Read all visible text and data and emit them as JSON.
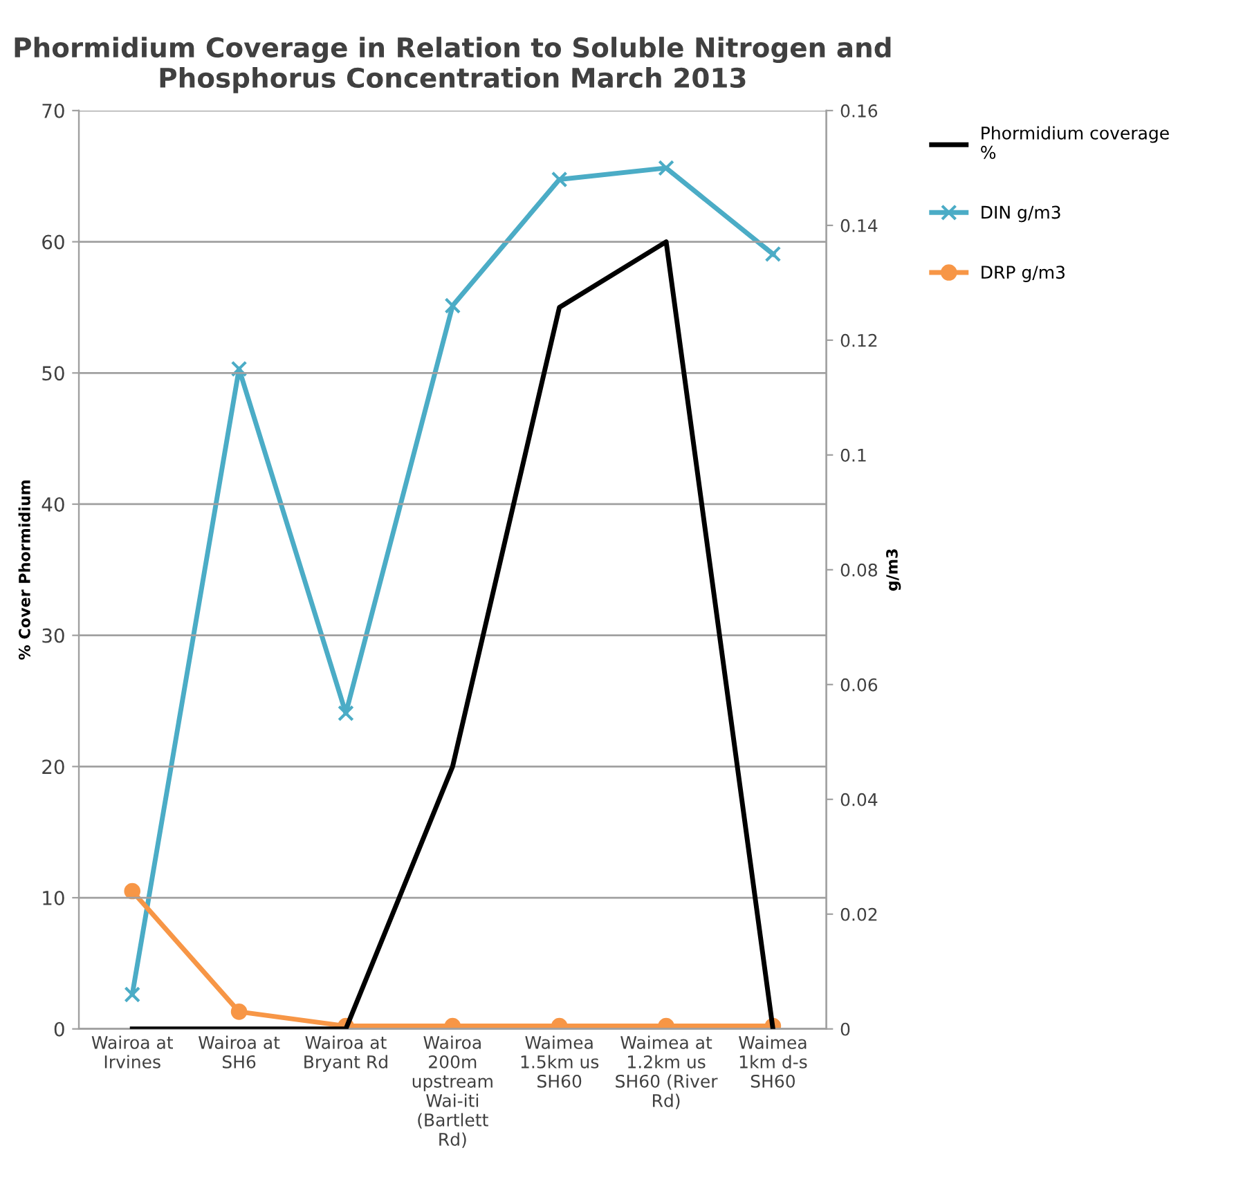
{
  "chart_data": {
    "type": "line",
    "title": "Phormidium Coverage in Relation to Soluble Nitrogen and\nPhosphorus Concentration March 2013",
    "ylabel": "% Cover Phormidium",
    "y2label": "g/m3",
    "categories": [
      "Wairoa at\nIrvines",
      "Wairoa at\nSH6",
      "Wairoa at\nBryant Rd",
      "Wairoa\n200m\nupstream\nWai-iti\n(Bartlett\nRd)",
      "Waimea\n1.5km us\nSH60",
      "Waimea at\n1.2km us\nSH60 (River\nRd)",
      "Waimea\n1km d-s\nSH60"
    ],
    "series": [
      {
        "name": "Phormidium coverage\n%",
        "color": "#000000",
        "marker": "none",
        "values": [
          0,
          0,
          0,
          20,
          55,
          60,
          0
        ]
      },
      {
        "name": "DIN g/m3",
        "color": "#4bacc6",
        "marker": "cross",
        "axis": "y2",
        "values": [
          0.006,
          0.115,
          0.055,
          0.126,
          0.148,
          0.15,
          0.135
        ]
      },
      {
        "name": "DRP g/m3",
        "color": "#f79646",
        "marker": "circle",
        "axis": "y2",
        "values": [
          0.024,
          0.003,
          0.0005,
          0.0005,
          0.0005,
          0.0005,
          0.0005
        ]
      }
    ],
    "ylim": [
      0,
      70
    ],
    "yticks": [
      0,
      10,
      20,
      30,
      40,
      50,
      60,
      70
    ],
    "y2lim": [
      0,
      0.16
    ],
    "y2ticks": [
      {
        "value": 0,
        "label": "0"
      },
      {
        "value": 0.02,
        "label": "0.02"
      },
      {
        "value": 0.04,
        "label": "0.04"
      },
      {
        "value": 0.06,
        "label": "0.06"
      },
      {
        "value": 0.08,
        "label": "0.08"
      },
      {
        "value": 0.1,
        "label": "0.1"
      },
      {
        "value": 0.12,
        "label": "0.12"
      },
      {
        "value": 0.14,
        "label": "0.14"
      },
      {
        "value": 0.16,
        "label": "0.16"
      }
    ],
    "grid": "y",
    "legend": "right"
  }
}
